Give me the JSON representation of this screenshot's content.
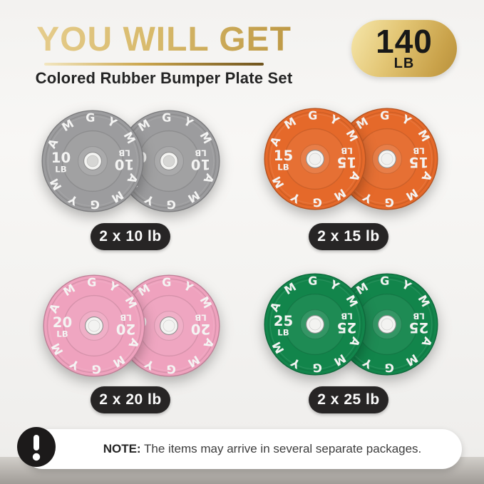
{
  "header": {
    "title": "YOU WILL GET",
    "subtitle": "Colored Rubber Bumper Plate Set",
    "badge": {
      "value": "140",
      "unit": "LB"
    }
  },
  "brand": "AMGYM",
  "plates": [
    {
      "weight": "10",
      "unit": "LB",
      "label": "2 x 10 lb",
      "color": "#9c9c9e",
      "hole_color": "#d6d6d4"
    },
    {
      "weight": "15",
      "unit": "LB",
      "label": "2 x 15 lb",
      "color": "#e5692a",
      "hole_color": "#f1f1ef"
    },
    {
      "weight": "20",
      "unit": "LB",
      "label": "2 x 20 lb",
      "color": "#efa2be",
      "hole_color": "#f3f3f1"
    },
    {
      "weight": "25",
      "unit": "LB",
      "label": "2 x 25 lb",
      "color": "#12854b",
      "hole_color": "#f3f3f1"
    }
  ],
  "note": {
    "label": "NOTE:",
    "text": "The items may arrive in several separate packages."
  },
  "colors": {
    "gold_light": "#e6cd8d",
    "gold_dark": "#bd9844",
    "pill_bg": "#272525",
    "note_icon_bg": "#1c1a1a"
  }
}
